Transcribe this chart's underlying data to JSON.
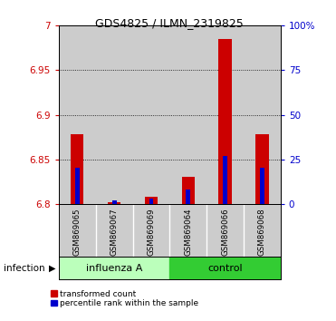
{
  "title": "GDS4825 / ILMN_2319825",
  "samples": [
    "GSM869065",
    "GSM869067",
    "GSM869069",
    "GSM869064",
    "GSM869066",
    "GSM869068"
  ],
  "group_labels": [
    "influenza A",
    "control"
  ],
  "transformed_counts": [
    6.878,
    6.802,
    6.808,
    6.83,
    6.985,
    6.878
  ],
  "percentile_ranks": [
    20,
    2,
    3,
    8,
    27,
    20
  ],
  "ylim_left": [
    6.8,
    7.0
  ],
  "ylim_right": [
    0,
    100
  ],
  "left_ticks": [
    6.8,
    6.85,
    6.9,
    6.95,
    7.0
  ],
  "right_ticks": [
    0,
    25,
    50,
    75,
    100
  ],
  "left_tick_labels": [
    "6.8",
    "6.85",
    "6.9",
    "6.95",
    "7"
  ],
  "right_tick_labels": [
    "0",
    "25",
    "50",
    "75",
    "100%"
  ],
  "bar_color_red": "#cc0000",
  "bar_color_blue": "#0000cc",
  "group_bg_light": "#bbffbb",
  "group_bg_dark": "#33cc33",
  "sample_bg": "#cccccc",
  "infection_label": "infection",
  "legend_red": "transformed count",
  "legend_blue": "percentile rank within the sample",
  "bar_width": 0.35,
  "blue_bar_width": 0.12,
  "baseline": 6.8,
  "n_influenza": 3,
  "n_control": 3
}
